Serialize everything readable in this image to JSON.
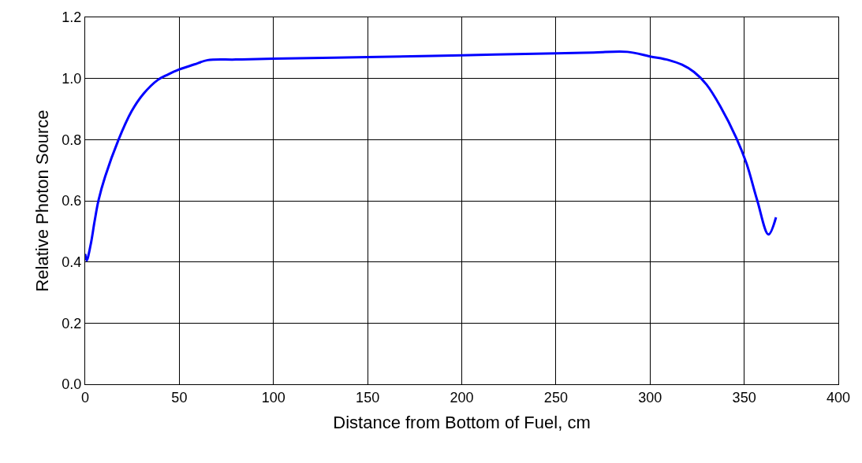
{
  "chart_data": {
    "type": "line",
    "xlabel": "Distance from Bottom of Fuel, cm",
    "ylabel": "Relative Photon Source",
    "x": [
      0,
      0.8,
      2.9,
      5,
      7.1,
      10.6,
      17.6,
      24.6,
      31,
      38.5,
      44,
      49.7,
      58,
      65,
      80,
      100,
      150,
      200,
      250,
      270,
      288,
      300,
      310,
      317,
      323.4,
      330,
      337.3,
      345.7,
      351.3,
      356.9,
      362.9,
      366.9
    ],
    "series": [
      {
        "color": "#0000ff",
        "values": [
          0.426,
          0.405,
          0.456,
          0.533,
          0.602,
          0.679,
          0.798,
          0.892,
          0.95,
          0.995,
          1.013,
          1.029,
          1.046,
          1.06,
          1.062,
          1.065,
          1.07,
          1.076,
          1.082,
          1.085,
          1.087,
          1.072,
          1.06,
          1.045,
          1.021,
          0.98,
          0.909,
          0.807,
          0.721,
          0.602,
          0.49,
          0.546
        ]
      }
    ],
    "xlim": [
      0,
      400
    ],
    "xticks": [
      0,
      50,
      100,
      150,
      200,
      250,
      300,
      350,
      400
    ],
    "ylim": [
      0,
      1.2
    ],
    "yticks": [
      {
        "value": 0,
        "label": "0.0"
      },
      {
        "value": 0.2,
        "label": "0.2"
      },
      {
        "value": 0.4,
        "label": "0.4"
      },
      {
        "value": 0.6,
        "label": "0.6"
      },
      {
        "value": 0.8,
        "label": "0.8"
      },
      {
        "value": 1.0,
        "label": "1.0"
      },
      {
        "value": 1.2,
        "label": "1.2"
      }
    ],
    "grid": true,
    "marker": "none",
    "line_style": "solid"
  }
}
